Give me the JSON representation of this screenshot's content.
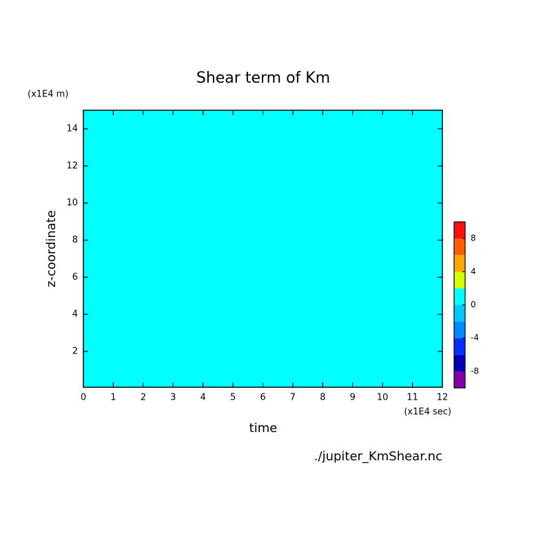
{
  "chart_data": {
    "type": "contour",
    "title": "Shear term of Km",
    "xlabel": "time",
    "ylabel": "z-coordinate",
    "x_unit_label": "(x1E4 sec)",
    "y_unit_label": "(x1E4 m)",
    "source": "./jupiter_KmShear.nc",
    "xlim": [
      0,
      12
    ],
    "ylim": [
      0.07,
      15
    ],
    "xticks": [
      0,
      1,
      2,
      3,
      4,
      5,
      6,
      7,
      8,
      9,
      10,
      11,
      12
    ],
    "yticks": [
      2,
      4,
      6,
      8,
      10,
      12,
      14
    ],
    "z": [
      [
        0
      ]
    ],
    "colorbar": {
      "levels": [
        -10,
        -8,
        -6,
        -4,
        -2,
        0,
        2,
        4,
        6,
        8,
        10
      ],
      "colors": [
        "#8000a8",
        "#0000b8",
        "#0030ff",
        "#0088ff",
        "#00c8ff",
        "#00ffff",
        "#d4ff00",
        "#ffa800",
        "#ff6000",
        "#ff1010",
        "#ffb0b0"
      ],
      "ticks": [
        -8,
        -4,
        0,
        4,
        8
      ]
    }
  }
}
